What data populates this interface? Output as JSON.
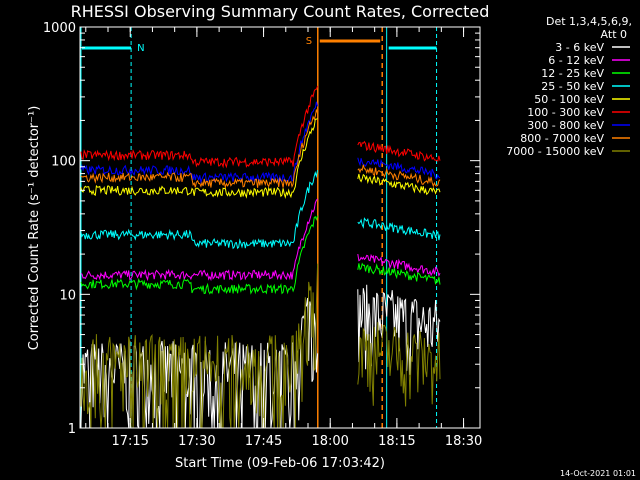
{
  "chart_data": {
    "type": "line",
    "title": "RHESSI Observing Summary Count Rates, Corrected",
    "xlabel": "Start Time (09-Feb-06 17:03:42)",
    "ylabel": "Corrected Count Rate (s⁻¹ detector⁻¹)",
    "yscale": "log",
    "ylim": [
      1,
      1000
    ],
    "xlim_minutes_after_start": [
      0,
      54
    ],
    "x_tick_labels": [
      "17:15",
      "17:30",
      "17:45",
      "18:00",
      "18:15",
      "18:30"
    ],
    "y_tick_labels": [
      "1",
      "10",
      "100",
      "1000"
    ],
    "legend_title": [
      "Det 1,3,4,5,6,9,",
      "Att 0"
    ],
    "legend_placement": "top-right, outside plot",
    "footer_date": "14-Oct-2021 01:01",
    "annotations": {
      "night_label": "N",
      "saa_label": "S"
    },
    "series": [
      {
        "name": "3 - 6 keV",
        "color": "#ffffff",
        "baseline": 2.5,
        "pre_level": 2.5,
        "post_level": 5
      },
      {
        "name": "6 - 12 keV",
        "color": "#ff00ff",
        "baseline": 14,
        "pre_level": 14,
        "post_level": 14
      },
      {
        "name": "12 - 25 keV",
        "color": "#00ff00",
        "baseline": 12,
        "pre_level": 11,
        "post_level": 12
      },
      {
        "name": "25 - 50 keV",
        "color": "#00ffff",
        "baseline": 28,
        "pre_level": 24,
        "post_level": 26
      },
      {
        "name": "50 - 100 keV",
        "color": "#ffff00",
        "baseline": 60,
        "pre_level": 58,
        "post_level": 55
      },
      {
        "name": "100 - 300 keV",
        "color": "#ff0000",
        "baseline": 110,
        "pre_level": 98,
        "post_level": 98
      },
      {
        "name": "300 - 800 keV",
        "color": "#0000ff",
        "baseline": 85,
        "pre_level": 75,
        "post_level": 75
      },
      {
        "name": "800 - 7000 keV",
        "color": "#ff8000",
        "baseline": 75,
        "pre_level": 68,
        "post_level": 65
      },
      {
        "name": "7000 - 15000 keV",
        "color": "#808000",
        "baseline": 2.8,
        "pre_level": 2.8,
        "post_level": 2.8
      }
    ],
    "data_gap_minutes": [
      53.5,
      62.5
    ],
    "saa_interval_minutes": [
      53.5,
      68
    ],
    "night_intervals_minutes": [
      [
        0,
        11.5
      ],
      [
        69,
        80
      ]
    ]
  }
}
